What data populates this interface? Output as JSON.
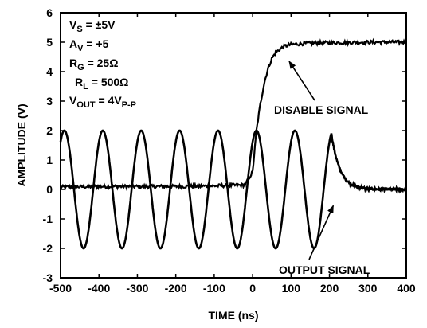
{
  "chart_data": {
    "type": "line",
    "title": "",
    "xlabel": "TIME (ns)",
    "ylabel": "AMPLITUDE (V)",
    "xlim": [
      -500,
      400
    ],
    "ylim": [
      -3,
      6
    ],
    "x_ticks": [
      -500,
      -400,
      -300,
      -200,
      -100,
      0,
      100,
      200,
      300,
      400
    ],
    "y_ticks": [
      -3,
      -2,
      -1,
      0,
      1,
      2,
      3,
      4,
      5,
      6
    ],
    "grid": false,
    "conditions": [
      {
        "main": "V",
        "sub": "S",
        "rest": " = ±5V"
      },
      {
        "main": "A",
        "sub": "V",
        "rest": " = +5"
      },
      {
        "main": "R",
        "sub": "G",
        "rest": " = 25Ω"
      },
      {
        "main": "R",
        "sub": "L",
        "rest": " = 500Ω"
      },
      {
        "main": "V",
        "sub": "OUT",
        "rest": " = 4V",
        "sub2": "P-P"
      }
    ],
    "annotations": [
      {
        "text": "DISABLE SIGNAL"
      },
      {
        "text": "OUTPUT SIGNAL"
      }
    ],
    "series": [
      {
        "label": "DISABLE SIGNAL",
        "x": [
          -500,
          -400,
          -300,
          -200,
          -100,
          -20,
          0,
          10,
          20,
          30,
          40,
          50,
          60,
          80,
          100,
          130,
          160,
          200,
          300,
          400
        ],
        "y": [
          0.08,
          0.1,
          0.1,
          0.1,
          0.12,
          0.15,
          0.6,
          2.0,
          2.9,
          3.6,
          4.1,
          4.45,
          4.65,
          4.85,
          4.92,
          4.95,
          4.97,
          4.98,
          5.0,
          5.0
        ]
      },
      {
        "label": "OUTPUT SIGNAL",
        "oscillation": {
          "x_start": -500,
          "x_end": 205,
          "period_ns": 100,
          "amplitude_v": 2.0
        },
        "decay": {
          "x_start": 205,
          "x_end": 400,
          "final_v": 0.0
        },
        "peaks_x": [
          -490,
          -390,
          -290,
          -190,
          -90,
          10,
          110
        ],
        "troughs_x": [
          -440,
          -340,
          -240,
          -140,
          -40,
          60,
          160
        ]
      }
    ]
  }
}
